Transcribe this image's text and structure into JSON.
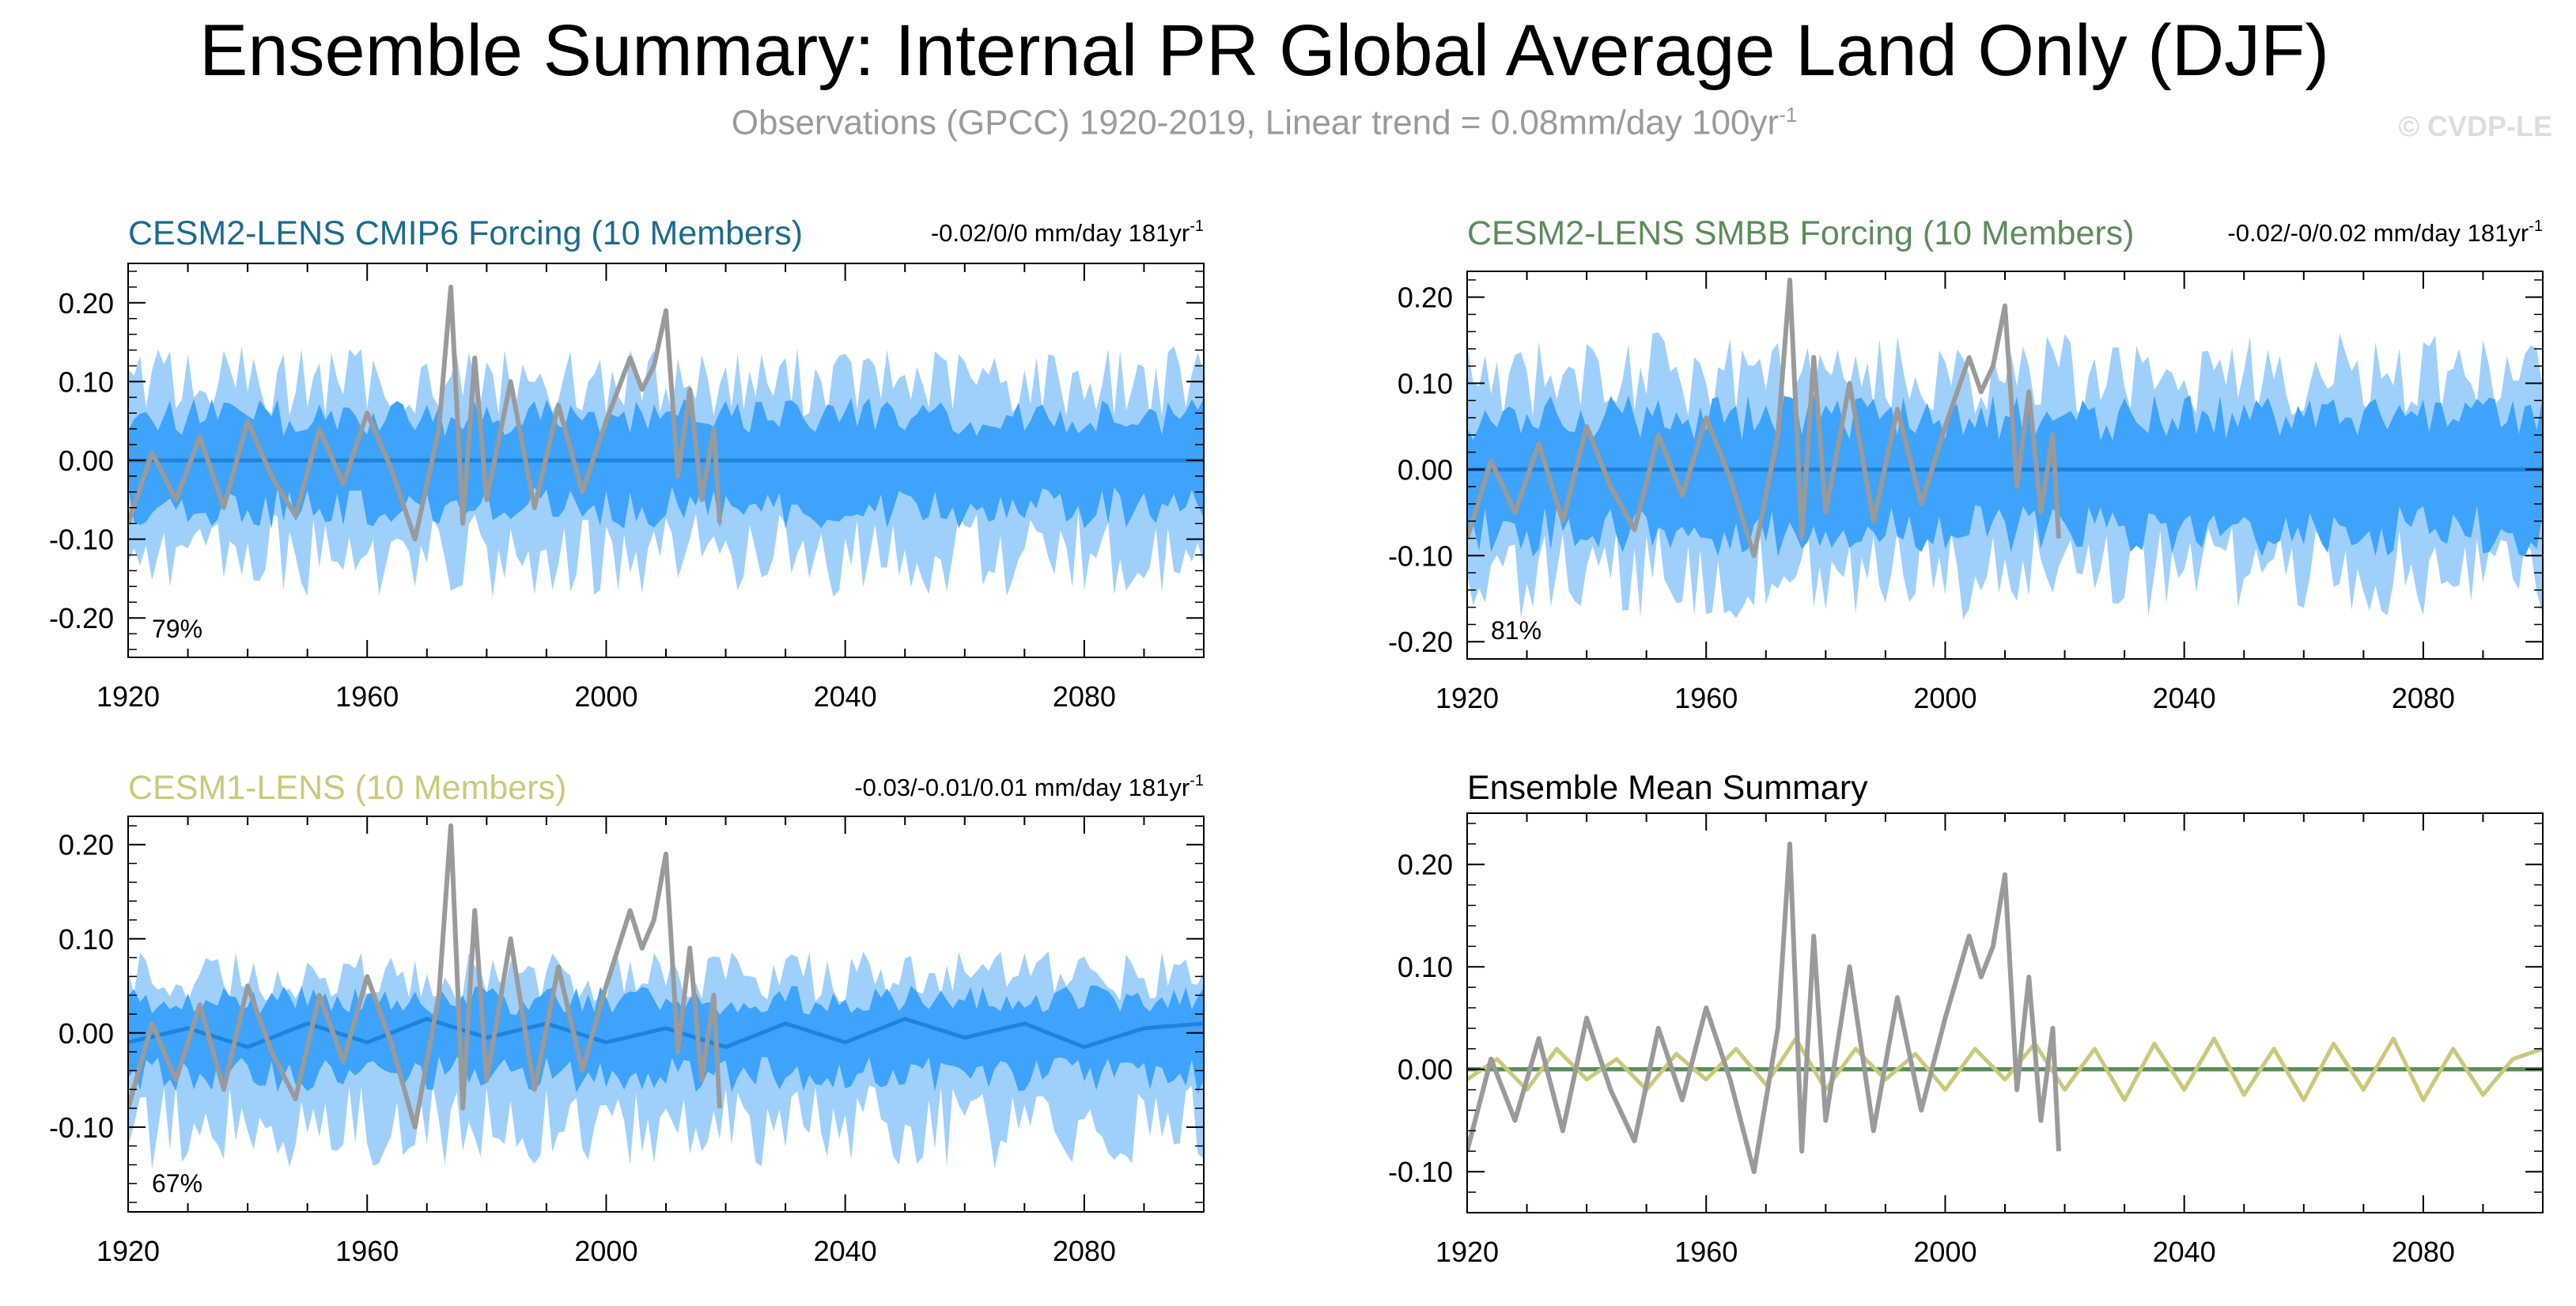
{
  "title": "Ensemble Summary: Internal PR Global Average Land Only (DJF)",
  "subtitle_main": "Observations (GPCC) 1920-2019, Linear trend = 0.08mm/day 100yr",
  "subtitle_sup": "-1",
  "watermark": "© CVDP-LE",
  "colors": {
    "obs": "#9a9a9a",
    "band_outer": "#9fd0fb",
    "band_inner": "#3ea3fa",
    "mean_line": "#1f83dc",
    "cesm2_cmip6": "#1c6b8f",
    "cesm2_smbb": "#5c8c5c",
    "cesm1": "#c9c97a",
    "summary_title": "#000000"
  },
  "chart_data": [
    {
      "type": "line",
      "id": "p1",
      "title": "CESM2-LENS CMIP6 Forcing (10 Members)",
      "title_color": "#1c6b8f",
      "trend_text": "-0.02/0/0 mm/day 181yr",
      "trend_sup": "-1",
      "pct_label": "79%",
      "xlim": [
        1920,
        2100
      ],
      "ylim": [
        -0.25,
        0.25
      ],
      "xticks": [
        1920,
        1960,
        2000,
        2040,
        2080
      ],
      "xtick_labels": [
        "1920",
        "1960",
        "2000",
        "2040",
        "2080"
      ],
      "yticks": [
        0.2,
        0.1,
        0,
        -0.1,
        -0.2
      ],
      "ytick_labels": [
        "0.20",
        "0.10",
        "0.00",
        "-0.10",
        "-0.20"
      ],
      "band_outer": [
        0.1,
        -0.12
      ],
      "band_inner": [
        0.055,
        -0.06
      ],
      "series": [
        {
          "name": "ensemble-mean",
          "color": "#1f83dc",
          "x": [
            1920,
            2100
          ],
          "values": [
            0,
            0
          ]
        },
        {
          "name": "observations",
          "color": "#9a9a9a",
          "x": [
            1920,
            1924,
            1928,
            1932,
            1936,
            1940,
            1944,
            1948,
            1952,
            1956,
            1960,
            1964,
            1968,
            1972,
            1974,
            1976,
            1978,
            1980,
            1984,
            1988,
            1992,
            1996,
            2000,
            2004,
            2006,
            2008,
            2010,
            2012,
            2014,
            2016,
            2018,
            2019
          ],
          "values": [
            -0.08,
            0.01,
            -0.05,
            0.03,
            -0.06,
            0.05,
            -0.02,
            -0.07,
            0.04,
            -0.03,
            0.06,
            -0.01,
            -0.1,
            0.04,
            0.22,
            -0.08,
            0.13,
            -0.05,
            0.1,
            -0.06,
            0.07,
            -0.04,
            0.05,
            0.13,
            0.09,
            0.12,
            0.19,
            -0.02,
            0.09,
            -0.05,
            0.04,
            -0.08
          ]
        }
      ]
    },
    {
      "type": "line",
      "id": "p2",
      "title": "CESM2-LENS SMBB Forcing (10 Members)",
      "title_color": "#5c8c5c",
      "trend_text": "-0.02/-0/0.02 mm/day 181yr",
      "trend_sup": "-1",
      "pct_label": "81%",
      "xlim": [
        1920,
        2100
      ],
      "ylim": [
        -0.22,
        0.23
      ],
      "xticks": [
        1920,
        1960,
        2000,
        2040,
        2080
      ],
      "xtick_labels": [
        "1920",
        "1960",
        "2000",
        "2040",
        "2080"
      ],
      "yticks": [
        0.2,
        0.1,
        0,
        -0.1,
        -0.2
      ],
      "ytick_labels": [
        "0.20",
        "0.10",
        "0.00",
        "-0.10",
        "-0.20"
      ],
      "band_outer": [
        0.11,
        -0.12
      ],
      "band_inner": [
        0.06,
        -0.07
      ],
      "series": [
        {
          "name": "ensemble-mean",
          "color": "#1f83dc",
          "x": [
            1920,
            2100
          ],
          "values": [
            0,
            0
          ]
        },
        {
          "name": "observations",
          "color": "#9a9a9a",
          "x": [
            1920,
            1924,
            1928,
            1932,
            1936,
            1940,
            1944,
            1948,
            1952,
            1956,
            1960,
            1964,
            1968,
            1972,
            1974,
            1976,
            1978,
            1980,
            1984,
            1988,
            1992,
            1996,
            2000,
            2004,
            2006,
            2008,
            2010,
            2012,
            2014,
            2016,
            2018,
            2019
          ],
          "values": [
            -0.08,
            0.01,
            -0.05,
            0.03,
            -0.06,
            0.05,
            -0.02,
            -0.07,
            0.04,
            -0.03,
            0.06,
            -0.01,
            -0.1,
            0.04,
            0.22,
            -0.08,
            0.13,
            -0.05,
            0.1,
            -0.06,
            0.07,
            -0.04,
            0.05,
            0.13,
            0.09,
            0.12,
            0.19,
            -0.02,
            0.09,
            -0.05,
            0.04,
            -0.08
          ]
        }
      ]
    },
    {
      "type": "line",
      "id": "p3",
      "title": "CESM1-LENS (10 Members)",
      "title_color": "#c9c97a",
      "trend_text": "-0.03/-0.01/0.01 mm/day 181yr",
      "trend_sup": "-1",
      "pct_label": "67%",
      "xlim": [
        1920,
        2100
      ],
      "ylim": [
        -0.19,
        0.23
      ],
      "xticks": [
        1920,
        1960,
        2000,
        2040,
        2080
      ],
      "xtick_labels": [
        "1920",
        "1960",
        "2000",
        "2040",
        "2080"
      ],
      "yticks": [
        0.2,
        0.1,
        0,
        -0.1
      ],
      "ytick_labels": [
        "0.20",
        "0.10",
        "0.00",
        "-0.10"
      ],
      "band_outer": [
        0.06,
        -0.1
      ],
      "band_inner": [
        0.035,
        -0.045
      ],
      "series": [
        {
          "name": "ensemble-mean",
          "color": "#1f83dc",
          "x": [
            1920,
            1930,
            1940,
            1950,
            1960,
            1970,
            1980,
            1990,
            2000,
            2010,
            2020,
            2030,
            2040,
            2050,
            2060,
            2070,
            2080,
            2090,
            2100
          ],
          "values": [
            -0.01,
            0.005,
            -0.015,
            0.01,
            -0.01,
            0.015,
            -0.005,
            0.01,
            -0.01,
            0.005,
            -0.015,
            0.01,
            -0.01,
            0.015,
            -0.005,
            0.01,
            -0.015,
            0.005,
            0.01
          ]
        },
        {
          "name": "observations",
          "color": "#9a9a9a",
          "x": [
            1920,
            1924,
            1928,
            1932,
            1936,
            1940,
            1944,
            1948,
            1952,
            1956,
            1960,
            1964,
            1968,
            1972,
            1974,
            1976,
            1978,
            1980,
            1984,
            1988,
            1992,
            1996,
            2000,
            2004,
            2006,
            2008,
            2010,
            2012,
            2014,
            2016,
            2018,
            2019
          ],
          "values": [
            -0.08,
            0.01,
            -0.05,
            0.03,
            -0.06,
            0.05,
            -0.02,
            -0.07,
            0.04,
            -0.03,
            0.06,
            -0.01,
            -0.1,
            0.04,
            0.22,
            -0.08,
            0.13,
            -0.05,
            0.1,
            -0.06,
            0.07,
            -0.04,
            0.05,
            0.13,
            0.09,
            0.12,
            0.19,
            -0.02,
            0.09,
            -0.05,
            0.04,
            -0.08
          ]
        }
      ]
    },
    {
      "type": "line",
      "id": "p4",
      "title": "Ensemble Mean Summary",
      "title_color": "#000000",
      "trend_text": "",
      "trend_sup": "",
      "pct_label": "",
      "xlim": [
        1920,
        2100
      ],
      "ylim": [
        -0.14,
        0.25
      ],
      "xticks": [
        1920,
        1960,
        2000,
        2040,
        2080
      ],
      "xtick_labels": [
        "1920",
        "1960",
        "2000",
        "2040",
        "2080"
      ],
      "yticks": [
        0.2,
        0.1,
        0,
        -0.1
      ],
      "ytick_labels": [
        "0.20",
        "0.10",
        "0.00",
        "-0.10"
      ],
      "band_outer": null,
      "band_inner": null,
      "series": [
        {
          "name": "cesm2-cmip6-mean",
          "color": "#1c6b8f",
          "x": [
            1920,
            2100
          ],
          "values": [
            0,
            0
          ]
        },
        {
          "name": "cesm2-smbb-mean",
          "color": "#5c8c5c",
          "x": [
            1920,
            2100
          ],
          "values": [
            0,
            0
          ]
        },
        {
          "name": "cesm1-mean",
          "color": "#c9c97a",
          "x": [
            1920,
            1925,
            1930,
            1935,
            1940,
            1945,
            1950,
            1955,
            1960,
            1965,
            1970,
            1975,
            1980,
            1985,
            1990,
            1995,
            2000,
            2005,
            2010,
            2015,
            2020,
            2025,
            2030,
            2035,
            2040,
            2045,
            2050,
            2055,
            2060,
            2065,
            2070,
            2075,
            2080,
            2085,
            2090,
            2095,
            2100
          ],
          "values": [
            -0.01,
            0.01,
            -0.02,
            0.02,
            -0.01,
            0.01,
            -0.02,
            0.015,
            -0.01,
            0.02,
            -0.015,
            0.03,
            -0.02,
            0.02,
            -0.01,
            0.015,
            -0.02,
            0.02,
            -0.01,
            0.025,
            -0.02,
            0.02,
            -0.03,
            0.025,
            -0.02,
            0.03,
            -0.025,
            0.02,
            -0.03,
            0.025,
            -0.02,
            0.03,
            -0.03,
            0.02,
            -0.025,
            0.01,
            0.02
          ]
        },
        {
          "name": "observations",
          "color": "#9a9a9a",
          "x": [
            1920,
            1924,
            1928,
            1932,
            1936,
            1940,
            1944,
            1948,
            1952,
            1956,
            1960,
            1964,
            1968,
            1972,
            1974,
            1976,
            1978,
            1980,
            1984,
            1988,
            1992,
            1996,
            2000,
            2004,
            2006,
            2008,
            2010,
            2012,
            2014,
            2016,
            2018,
            2019
          ],
          "values": [
            -0.08,
            0.01,
            -0.05,
            0.03,
            -0.06,
            0.05,
            -0.02,
            -0.07,
            0.04,
            -0.03,
            0.06,
            -0.01,
            -0.1,
            0.04,
            0.22,
            -0.08,
            0.13,
            -0.05,
            0.1,
            -0.06,
            0.07,
            -0.04,
            0.05,
            0.13,
            0.09,
            0.12,
            0.19,
            -0.02,
            0.09,
            -0.05,
            0.04,
            -0.08
          ]
        }
      ]
    }
  ]
}
